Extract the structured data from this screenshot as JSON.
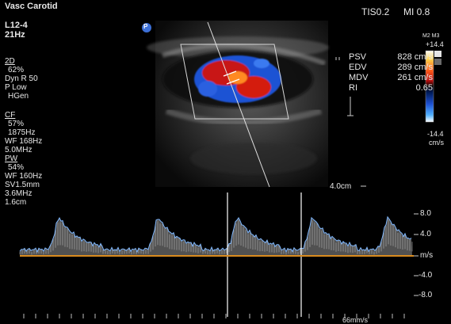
{
  "header": {
    "preset": "Vasc Carotid",
    "probe": "L12-4",
    "frame_rate": "21Hz",
    "tis_label": "TIS0.2",
    "mi_label": "MI 0.8"
  },
  "mode_2d": {
    "title": "2D",
    "lines": [
      "62%",
      "Dyn R 50",
      "P Low",
      "HGen"
    ]
  },
  "mode_cf": {
    "title": "CF",
    "lines": [
      "57%",
      "1875Hz",
      "WF 168Hz",
      "5.0MHz"
    ]
  },
  "mode_pw": {
    "title": "PW",
    "lines": [
      "54%",
      "WF 160Hz",
      "SV1.5mm",
      "3.6MHz",
      "1.6cm"
    ]
  },
  "colorbar": {
    "map_label": "M2 M3",
    "top_value": "+14.4",
    "bottom_value": "-14.4",
    "unit": "cm/s",
    "colors": [
      "#ffffff",
      "#ffd24a",
      "#ff5a1a",
      "#b80e0e",
      "#1a0000",
      "#000000",
      "#001a55",
      "#1e52d4",
      "#4fb0ff",
      "#ffffff"
    ]
  },
  "measurements": [
    {
      "label": "PSV",
      "value": "828 cm/s"
    },
    {
      "label": "EDV",
      "value": "289 cm/s"
    },
    {
      "label": "MDV",
      "value": "261 cm/s"
    },
    {
      "label": "RI",
      "value": "0.65"
    }
  ],
  "depth_label": "4.0cm",
  "orientation_marker": "P",
  "spectral": {
    "scale_labels": [
      "8.0",
      "4.0",
      "m/s",
      "-4.0",
      "-8.0"
    ],
    "sweep_speed": "66mm/s",
    "baseline_color": "#d98b1e",
    "envelope_color": "#7fb8ff"
  }
}
